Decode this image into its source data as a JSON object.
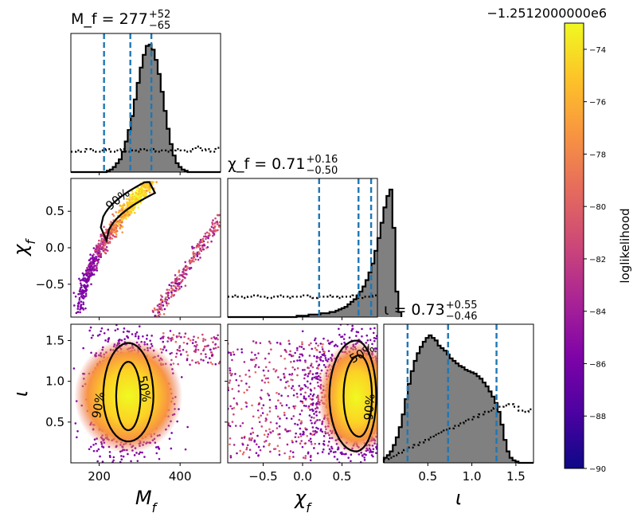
{
  "chart_data": {
    "type": "corner",
    "colorbar": {
      "label": "loglikelihood",
      "offset_text": "−1.2512000000e6",
      "range": [
        -90,
        -73
      ],
      "ticks": [
        -90,
        -88,
        -86,
        -84,
        -82,
        -80,
        -78,
        -76,
        -74
      ],
      "tick_labels": [
        "−90",
        "−88",
        "−86",
        "−84",
        "−82",
        "−80",
        "−78",
        "−76",
        "−74"
      ],
      "colormap": "plasma"
    },
    "parameters": [
      {
        "key": "Mf",
        "label": "M_f",
        "axis_label_html": "M<tspan baseline-shift='sub' font-size='16'>f</tspan>",
        "title_main": "M_f = 277",
        "title_sup": "+52",
        "title_sub": "−65",
        "range": [
          130,
          500
        ],
        "ticks": [
          200,
          400
        ],
        "tick_labels": [
          "200",
          "400"
        ],
        "median": 277,
        "lower": 212,
        "upper": 329,
        "histogram": {
          "edges_start": 130,
          "bin_width": 7.4,
          "counts": [
            0,
            0,
            0,
            0,
            0,
            0,
            0,
            0,
            0,
            0,
            0,
            0,
            1,
            2,
            4,
            7,
            10,
            16,
            24,
            33,
            44,
            57,
            70,
            82,
            92,
            99,
            100,
            96,
            88,
            77,
            63,
            48,
            34,
            22,
            13,
            7,
            4,
            2,
            1,
            0,
            0,
            0,
            0,
            0,
            0,
            0,
            0,
            0,
            0,
            0
          ],
          "ymax": 100
        },
        "prior": [
          16,
          17,
          16,
          18,
          17,
          16,
          17,
          18,
          16,
          17,
          18,
          16,
          17,
          16,
          18,
          17,
          18,
          16,
          17,
          16,
          17,
          18,
          17,
          16,
          18,
          20,
          17,
          18,
          16,
          19
        ]
      },
      {
        "key": "chif",
        "label": "χ_f",
        "axis_label_html": "χ<tspan baseline-shift='sub' font-size='16'>f</tspan>",
        "title_main": "χ_f = 0.71",
        "title_sup": "+0.16",
        "title_sub": "−0.50",
        "range": [
          -0.95,
          0.95
        ],
        "ticks": [
          -0.5,
          0.0,
          0.5
        ],
        "tick_labels": [
          "−0.5",
          "0.0",
          "0.5"
        ],
        "median": 0.71,
        "lower": 0.21,
        "upper": 0.87,
        "histogram": {
          "edges_start": -0.95,
          "bin_width": 0.038,
          "counts": [
            0,
            0,
            0,
            0,
            0,
            0,
            0,
            0,
            0,
            0,
            0,
            0,
            0,
            0,
            0,
            0,
            0,
            0,
            0,
            0,
            0,
            0,
            0,
            1,
            1,
            1,
            1,
            2,
            2,
            2,
            2,
            3,
            3,
            3,
            4,
            4,
            5,
            6,
            7,
            8,
            10,
            12,
            14,
            17,
            20,
            24,
            29,
            35,
            42,
            52,
            62,
            74,
            86,
            95,
            100,
            70,
            20,
            4
          ],
          "ymax": 100
        },
        "prior": [
          16,
          17,
          16,
          15,
          16,
          17,
          16,
          16,
          15,
          16,
          17,
          16,
          15,
          16,
          16,
          17,
          16,
          15,
          16,
          16,
          17,
          16,
          15,
          16,
          16,
          17,
          15,
          16,
          16,
          17
        ]
      },
      {
        "key": "iota",
        "label": "ι",
        "axis_label_html": "ι",
        "title_main": "ι = 0.73",
        "title_sup": "+0.55",
        "title_sub": "−0.46",
        "range": [
          0,
          1.7
        ],
        "ticks": [
          0.5,
          1.0,
          1.5
        ],
        "tick_labels": [
          "0.5",
          "1.0",
          "1.5"
        ],
        "median": 0.73,
        "lower": 0.27,
        "upper": 1.28,
        "histogram": {
          "edges_start": 0,
          "bin_width": 0.034,
          "counts": [
            4,
            6,
            9,
            14,
            20,
            28,
            38,
            50,
            62,
            72,
            80,
            86,
            91,
            95,
            98,
            100,
            98,
            96,
            92,
            90,
            88,
            85,
            82,
            80,
            78,
            76,
            75,
            73,
            72,
            71,
            70,
            68,
            66,
            63,
            60,
            56,
            52,
            47,
            40,
            30,
            18,
            9,
            4,
            2,
            1,
            0,
            0,
            0,
            0,
            0
          ],
          "ymax": 100
        },
        "prior": [
          3,
          4,
          6,
          8,
          10,
          12,
          14,
          16,
          18,
          20,
          22,
          24,
          26,
          27,
          29,
          31,
          33,
          34,
          36,
          38,
          40,
          41,
          43,
          44,
          45,
          46,
          44,
          41,
          40,
          42
        ]
      }
    ],
    "contours": {
      "levels": [
        "90%",
        "50%"
      ],
      "panels": [
        {
          "x": "Mf",
          "y": "chif",
          "labels": [
            "90%"
          ]
        },
        {
          "x": "Mf",
          "y": "iota",
          "labels": [
            "90%",
            "50%"
          ]
        },
        {
          "x": "chif",
          "y": "iota",
          "labels": [
            "50%",
            "90%"
          ]
        }
      ]
    }
  }
}
